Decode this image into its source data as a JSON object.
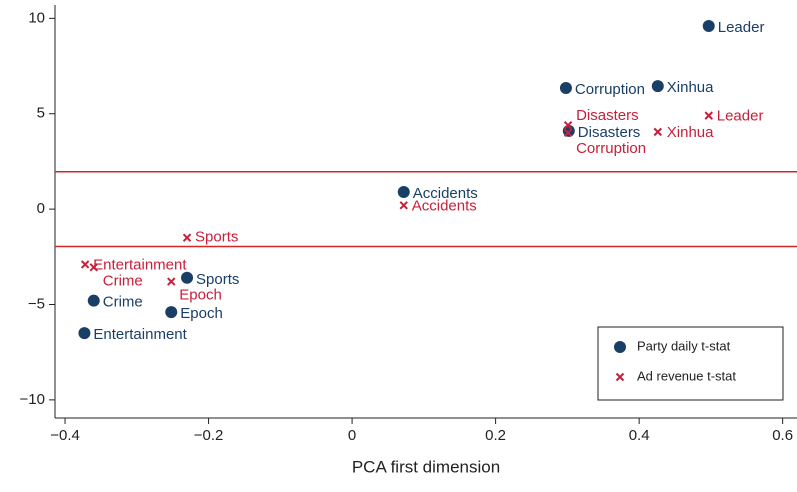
{
  "chart_data": {
    "type": "scatter",
    "xlabel": "PCA first dimension",
    "xlim": [
      -0.414,
      0.62
    ],
    "ylim": [
      -10.95,
      10.7
    ],
    "xticks": [
      {
        "value": -0.4,
        "label": "−0.4"
      },
      {
        "value": -0.2,
        "label": "−0.2"
      },
      0,
      0.2,
      0.4,
      0.6
    ],
    "yticks": [
      {
        "value": -10,
        "label": "−10"
      },
      {
        "value": -5,
        "label": "−5"
      },
      0,
      5,
      10
    ],
    "reference_lines": [
      1.96,
      -1.96
    ],
    "reference_color": "#d62728",
    "legend": "lower right",
    "series": [
      {
        "name": "Party daily t-stat",
        "color": "#1a3f66",
        "marker": "circle",
        "labels": [
          "Leader",
          "Xinhua",
          "Corruption",
          "Disasters",
          "Accidents",
          "Sports",
          "Crime",
          "Epoch",
          "Entertainment"
        ],
        "x": [
          0.497,
          0.426,
          0.298,
          0.302,
          0.072,
          -0.23,
          -0.36,
          -0.252,
          -0.373
        ],
        "values": [
          9.6,
          6.45,
          6.35,
          4.1,
          0.9,
          -3.6,
          -4.8,
          -5.4,
          -6.5
        ]
      },
      {
        "name": "Ad revenue t-stat",
        "color": "#c8203a",
        "marker": "x",
        "labels": [
          "Leader",
          "Disasters",
          "Corruption",
          "Xinhua",
          "Accidents",
          "Sports",
          "Entertainment",
          "Crime",
          "Epoch"
        ],
        "x": [
          0.497,
          0.301,
          0.301,
          0.426,
          0.072,
          -0.23,
          -0.372,
          -0.36,
          -0.252
        ],
        "values": [
          4.9,
          4.4,
          4.0,
          4.05,
          0.2,
          -1.5,
          -2.9,
          -3.05,
          -3.8
        ]
      }
    ]
  }
}
